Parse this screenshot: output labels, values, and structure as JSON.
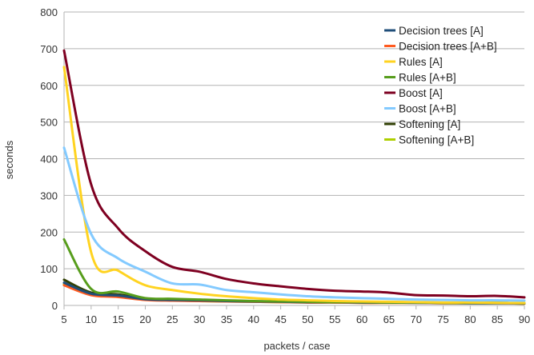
{
  "chart_data": {
    "type": "line",
    "xlabel": "packets / case",
    "ylabel": "seconds",
    "xlim": [
      5,
      90
    ],
    "ylim": [
      0,
      800
    ],
    "x_ticks": [
      5,
      10,
      15,
      20,
      25,
      30,
      35,
      40,
      45,
      50,
      55,
      60,
      65,
      70,
      75,
      80,
      85,
      90
    ],
    "y_ticks": [
      0,
      100,
      200,
      300,
      400,
      500,
      600,
      700,
      800
    ],
    "grid": "horizontal",
    "legend": "top-right",
    "x": [
      5,
      10,
      15,
      20,
      25,
      30,
      35,
      40,
      45,
      50,
      55,
      60,
      65,
      70,
      75,
      80,
      85,
      90
    ],
    "series": [
      {
        "name": "Decision trees [A]",
        "color": "#1f4e79",
        "values": [
          62,
          32,
          27,
          17,
          15,
          14,
          12,
          11,
          10,
          9,
          9,
          8,
          8,
          7,
          7,
          6,
          6,
          6
        ]
      },
      {
        "name": "Decision trees [A+B]",
        "color": "#ff5a1f",
        "values": [
          55,
          28,
          23,
          15,
          13,
          12,
          11,
          10,
          9,
          8,
          8,
          7,
          7,
          7,
          6,
          6,
          6,
          5
        ]
      },
      {
        "name": "Rules [A]",
        "color": "#ffd320",
        "values": [
          650,
          145,
          95,
          55,
          42,
          32,
          25,
          20,
          16,
          14,
          12,
          11,
          10,
          9,
          8,
          8,
          7,
          7
        ]
      },
      {
        "name": "Rules [A+B]",
        "color": "#579d1c",
        "values": [
          180,
          45,
          38,
          20,
          18,
          16,
          14,
          12,
          11,
          10,
          9,
          9,
          8,
          8,
          7,
          7,
          7,
          6
        ]
      },
      {
        "name": "Boost [A]",
        "color": "#7e0021",
        "values": [
          695,
          330,
          210,
          148,
          105,
          92,
          72,
          60,
          52,
          45,
          40,
          38,
          35,
          28,
          27,
          25,
          26,
          22
        ]
      },
      {
        "name": "Boost [A+B]",
        "color": "#83caff",
        "values": [
          430,
          195,
          128,
          92,
          60,
          57,
          42,
          36,
          30,
          25,
          22,
          20,
          18,
          16,
          15,
          14,
          14,
          13
        ]
      },
      {
        "name": "Softening [A]",
        "color": "#314004",
        "values": [
          70,
          35,
          30,
          18,
          16,
          14,
          12,
          11,
          10,
          9,
          9,
          8,
          8,
          8,
          7,
          7,
          7,
          6
        ]
      },
      {
        "name": "Softening [A+B]",
        "color": "#aecf00",
        "values": [
          58,
          30,
          25,
          16,
          14,
          12,
          11,
          10,
          9,
          8,
          8,
          7,
          7,
          7,
          6,
          6,
          6,
          5
        ]
      }
    ]
  }
}
